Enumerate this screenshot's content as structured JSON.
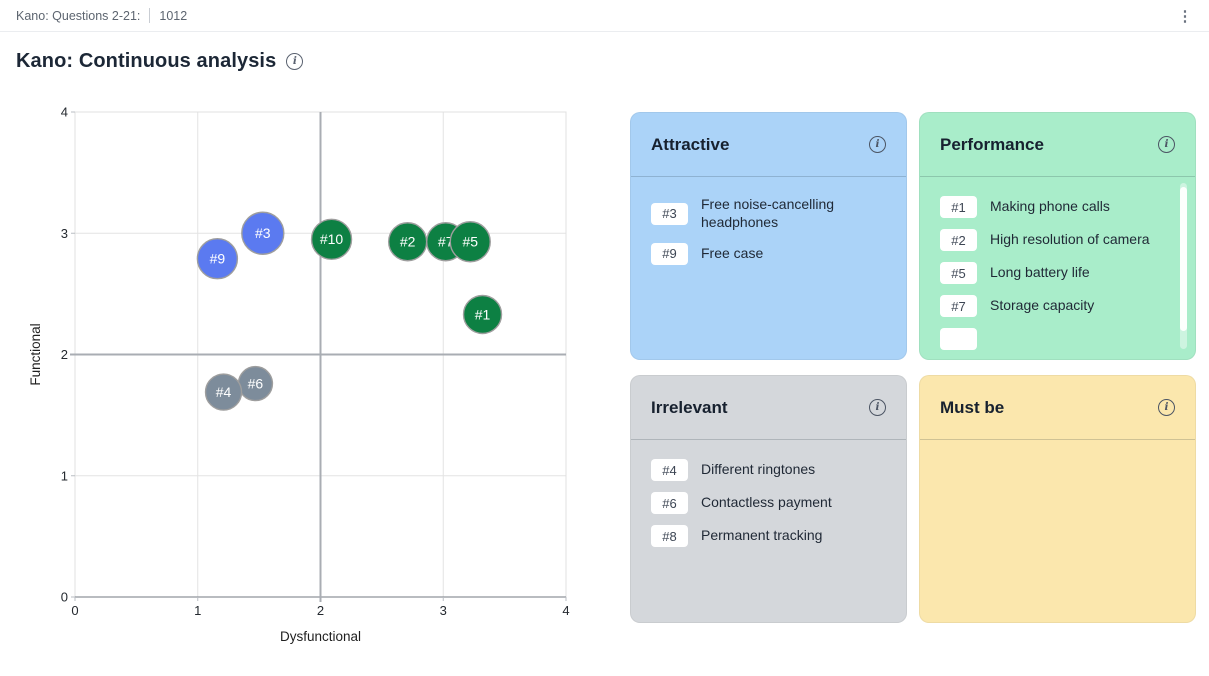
{
  "topbar": {
    "breadcrumb": "Kano: Questions 2-21:",
    "doc_id": "1012"
  },
  "page": {
    "title": "Kano: Continuous analysis"
  },
  "chart_data": {
    "type": "scatter",
    "title": "",
    "xlabel": "Dysfunctional",
    "ylabel": "Functional",
    "xlim": [
      0,
      4
    ],
    "ylim": [
      0,
      4
    ],
    "xticks": [
      0,
      1,
      2,
      3,
      4
    ],
    "yticks": [
      0,
      1,
      2,
      3,
      4
    ],
    "grid": true,
    "quadrant_divider": {
      "x": 2,
      "y": 2
    },
    "colors": {
      "attractive": "#5b7af0",
      "performance": "#0d8043",
      "irrelevant": "#7d8c9b",
      "bubble_stroke": "#9e9e9e",
      "grid_line": "#e3e3e3",
      "plot_border": "#e0e0e0",
      "axis_line": "#8f939a",
      "quadrant_line": "#a9adb3",
      "tick_text": "#24292f"
    },
    "series": [
      {
        "name": "attractive",
        "color": "#5b7af0",
        "points": [
          {
            "id": "#9",
            "x": 1.16,
            "y": 2.79,
            "r": 20
          },
          {
            "id": "#3",
            "x": 1.53,
            "y": 3.0,
            "r": 21
          }
        ]
      },
      {
        "name": "performance",
        "color": "#0d8043",
        "points": [
          {
            "id": "#10",
            "x": 2.09,
            "y": 2.95,
            "r": 20
          },
          {
            "id": "#2",
            "x": 2.71,
            "y": 2.93,
            "r": 19
          },
          {
            "id": "#7",
            "x": 3.02,
            "y": 2.93,
            "r": 19
          },
          {
            "id": "#5",
            "x": 3.22,
            "y": 2.93,
            "r": 20
          },
          {
            "id": "#1",
            "x": 3.32,
            "y": 2.33,
            "r": 19
          }
        ]
      },
      {
        "name": "irrelevant",
        "color": "#7d8c9b",
        "points": [
          {
            "id": "#6",
            "x": 1.47,
            "y": 1.76,
            "r": 17
          },
          {
            "id": "#4",
            "x": 1.21,
            "y": 1.69,
            "r": 18
          }
        ]
      }
    ]
  },
  "cards": [
    {
      "key": "attractive",
      "title": "Attractive",
      "bg": "#abd3f8",
      "items": [
        {
          "id": "#3",
          "label": "Free noise-cancelling headphones"
        },
        {
          "id": "#9",
          "label": "Free case"
        }
      ]
    },
    {
      "key": "performance",
      "title": "Performance",
      "bg": "#a9edca",
      "scrollbar": true,
      "partial_next_item": true,
      "items": [
        {
          "id": "#1",
          "label": "Making phone calls"
        },
        {
          "id": "#2",
          "label": "High resolution of camera"
        },
        {
          "id": "#5",
          "label": "Long battery life"
        },
        {
          "id": "#7",
          "label": "Storage capacity"
        }
      ]
    },
    {
      "key": "irrelevant",
      "title": "Irrelevant",
      "bg": "#d4d7db",
      "items": [
        {
          "id": "#4",
          "label": "Different ringtones"
        },
        {
          "id": "#6",
          "label": "Contactless payment"
        },
        {
          "id": "#8",
          "label": "Permanent tracking"
        }
      ]
    },
    {
      "key": "must-be",
      "title": "Must be",
      "bg": "#fbe7ad",
      "items": []
    }
  ]
}
